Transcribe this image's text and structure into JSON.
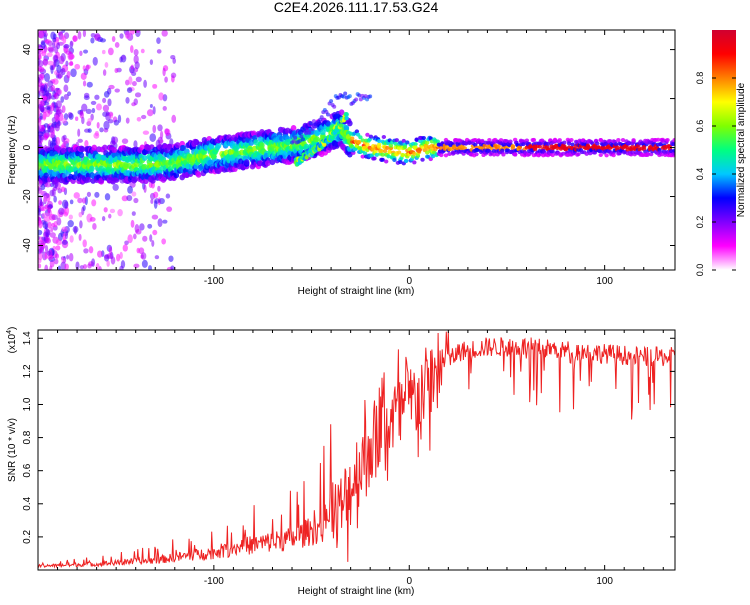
{
  "title": "C2E4.2026.111.17.53.G24",
  "colors": {
    "axis": "#000000",
    "snr_line": "#ee2222",
    "colormap": [
      "#ffffff",
      "#ff00ff",
      "#8000ff",
      "#0000ff",
      "#00c8ff",
      "#00ff80",
      "#80ff00",
      "#ffff00",
      "#ff8000",
      "#ff0000",
      "#d00030"
    ]
  },
  "chart_data": [
    {
      "type": "heatmap",
      "name": "spectrogram",
      "title": "C2E4.2026.111.17.53.G24",
      "xlabel": "Height of straight line (km)",
      "ylabel": "Frequency (Hz)",
      "xlim": [
        -190,
        136
      ],
      "ylim": [
        -50,
        48
      ],
      "xticks": [
        -100,
        0,
        100
      ],
      "yticks": [
        -40,
        -20,
        0,
        20,
        40
      ],
      "xtick_labels": [
        "-100",
        "0",
        "100"
      ],
      "ytick_labels": [
        "-40",
        "-20",
        "0",
        "20",
        "40"
      ],
      "ridge": {
        "x": [
          -190,
          -160,
          -140,
          -120,
          -100,
          -80,
          -60,
          -45,
          -35,
          -30,
          -20,
          -10,
          0,
          10,
          20,
          50,
          100,
          136
        ],
        "freq": [
          -7,
          -7,
          -7,
          -6,
          -3,
          -1,
          1,
          4,
          8,
          3,
          0,
          -1,
          -2,
          0,
          0,
          0,
          0,
          0
        ]
      },
      "branch": {
        "x": [
          -58,
          -50,
          -42,
          -36,
          -32
        ],
        "freq": [
          -6,
          -2,
          3,
          9,
          13
        ]
      },
      "colorbar": {
        "label": "Normalized spectral amplitude",
        "range": [
          0,
          1
        ],
        "ticks": [
          0.0,
          0.2,
          0.4,
          0.6,
          0.8
        ],
        "tick_labels": [
          "0.0",
          "0.2",
          "0.4",
          "0.6",
          "0.8"
        ]
      }
    },
    {
      "type": "line",
      "name": "snr",
      "xlabel": "Height of straight line (km)",
      "ylabel": "SNR (10 * v/v)",
      "y_scale_label": "(x10",
      "y_scale_exp": "4",
      "y_scale_close": ")",
      "xlim": [
        -190,
        136
      ],
      "ylim": [
        0,
        1.45
      ],
      "xticks": [
        -100,
        0,
        100
      ],
      "yticks": [
        0.2,
        0.4,
        0.6,
        0.8,
        1.0,
        1.2,
        1.4
      ],
      "xtick_labels": [
        "-100",
        "0",
        "100"
      ],
      "ytick_labels": [
        "0.2",
        "0.4",
        "0.6",
        "0.8",
        "1.0",
        "1.2",
        "1.4"
      ],
      "envelope": {
        "x": [
          -190,
          -160,
          -130,
          -100,
          -80,
          -60,
          -45,
          -35,
          -25,
          -15,
          -5,
          5,
          15,
          25,
          40,
          60,
          80,
          100,
          120,
          136
        ],
        "y": [
          0.02,
          0.03,
          0.05,
          0.09,
          0.13,
          0.16,
          0.22,
          0.35,
          0.65,
          0.85,
          0.95,
          1.05,
          1.2,
          1.33,
          1.36,
          1.36,
          1.34,
          1.32,
          1.3,
          1.3
        ]
      }
    }
  ]
}
